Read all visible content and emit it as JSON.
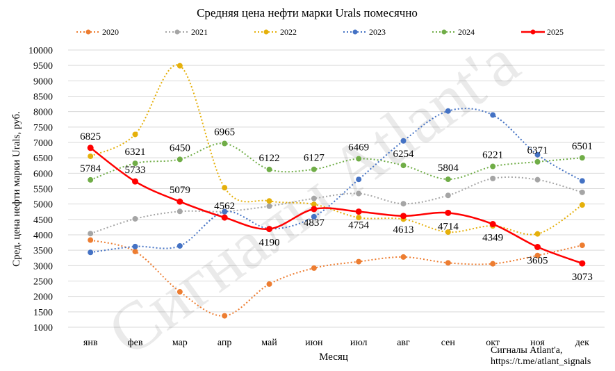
{
  "chart_data": {
    "type": "line",
    "title": "Средняя цена нефти марки Urals помесячно",
    "xlabel": "Месяц",
    "ylabel": "Сред. цена нефти марки Urals, руб.",
    "ylim": [
      1000,
      10000
    ],
    "yticks": [
      1000,
      1500,
      2000,
      2500,
      3000,
      3500,
      4000,
      4500,
      5000,
      5500,
      6000,
      6500,
      7000,
      7500,
      8000,
      8500,
      9000,
      9500,
      10000
    ],
    "grid": true,
    "legend_position": "top",
    "categories": [
      "янв",
      "фев",
      "мар",
      "апр",
      "май",
      "июн",
      "июл",
      "авг",
      "сен",
      "окт",
      "ноя",
      "дек"
    ],
    "series": [
      {
        "name": "2020",
        "color": "#ED7D31",
        "style": "dotted",
        "values": [
          3830,
          3460,
          2150,
          1370,
          2400,
          2920,
          3130,
          3280,
          3090,
          3060,
          3330,
          3660
        ]
      },
      {
        "name": "2021",
        "color": "#A5A5A5",
        "style": "dotted",
        "values": [
          4040,
          4520,
          4760,
          4760,
          4930,
          5180,
          5340,
          5010,
          5280,
          5830,
          5790,
          5380
        ]
      },
      {
        "name": "2022",
        "color": "#E5B00B",
        "style": "dotted",
        "values": [
          6550,
          7260,
          9490,
          5530,
          5100,
          4990,
          4560,
          4510,
          4090,
          4290,
          4030,
          4970
        ]
      },
      {
        "name": "2023",
        "color": "#4472C4",
        "style": "dotted",
        "values": [
          3430,
          3620,
          3640,
          4750,
          4200,
          4590,
          5800,
          7050,
          8020,
          7890,
          6600,
          5750
        ]
      },
      {
        "name": "2024",
        "color": "#70AD47",
        "style": "dotted",
        "labeled": true,
        "values": [
          5784,
          6321,
          6450,
          6965,
          6122,
          6127,
          6469,
          6254,
          5804,
          6221,
          6371,
          6501
        ]
      },
      {
        "name": "2025",
        "color": "#FF0000",
        "style": "solid",
        "labeled": true,
        "values": [
          6825,
          5733,
          5079,
          4562,
          4190,
          4837,
          4754,
          4613,
          4714,
          4349,
          3605,
          3073
        ]
      }
    ],
    "watermark": "Сигналы Atlant'a"
  },
  "footer": {
    "line1": "Сигналы Atlant'a,",
    "line2": "https://t.me/atlant_signals"
  }
}
